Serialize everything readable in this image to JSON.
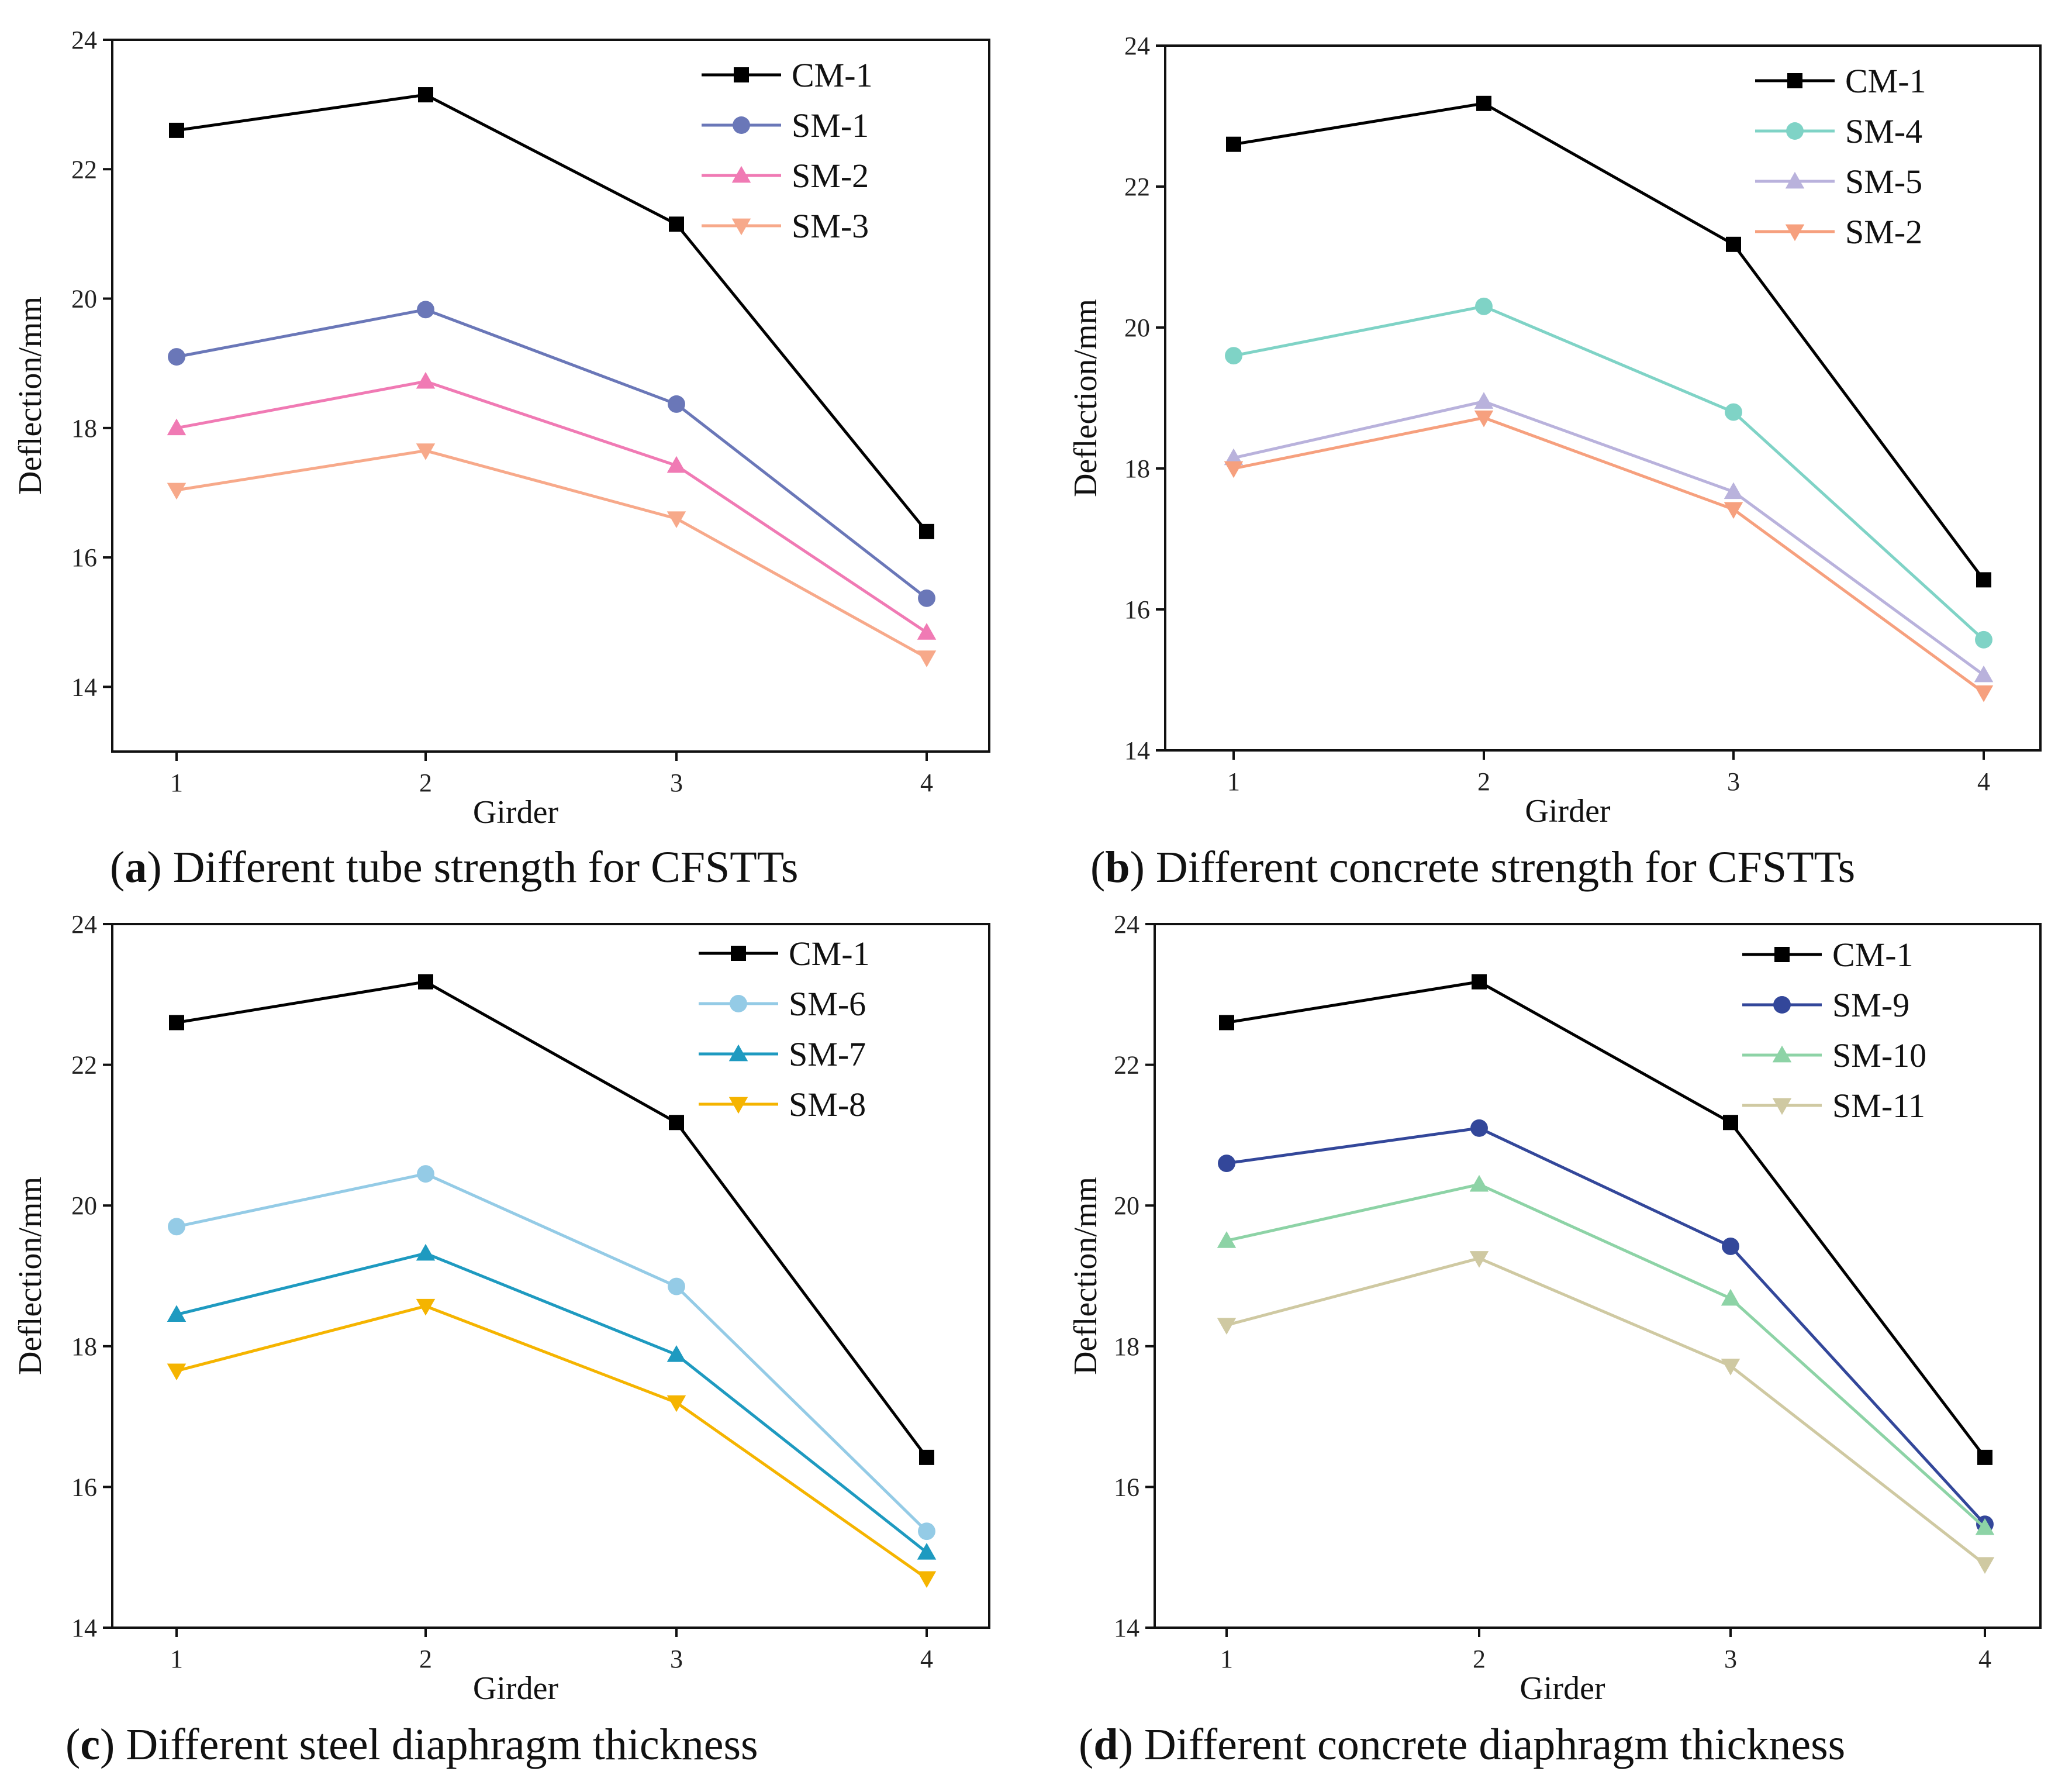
{
  "chart_data": [
    {
      "id": "a",
      "type": "line",
      "caption_letter": "a",
      "caption_text": "Different tube strength for CFSTTs",
      "xlabel": "Girder",
      "ylabel": "Deflection/mm",
      "categories": [
        "1",
        "2",
        "3",
        "4"
      ],
      "ylim": [
        13,
        24
      ],
      "yticks": [
        14,
        16,
        18,
        20,
        22,
        24
      ],
      "legend_position": "top-right",
      "series": [
        {
          "name": "CM-1",
          "color": "#000000",
          "marker": "square",
          "values": [
            22.6,
            23.15,
            21.15,
            16.4
          ]
        },
        {
          "name": "SM-1",
          "color": "#6a77b8",
          "marker": "circle",
          "values": [
            19.1,
            19.83,
            18.37,
            15.37
          ]
        },
        {
          "name": "SM-2",
          "color": "#f07ab4",
          "marker": "triangle-up",
          "values": [
            18.0,
            18.72,
            17.42,
            14.84
          ]
        },
        {
          "name": "SM-3",
          "color": "#f7a98a",
          "marker": "triangle-down",
          "values": [
            17.04,
            17.65,
            16.6,
            14.45
          ]
        }
      ]
    },
    {
      "id": "b",
      "type": "line",
      "caption_letter": "b",
      "caption_text": "Different concrete strength for CFSTTs",
      "xlabel": "Girder",
      "ylabel": "Deflection/mm",
      "categories": [
        "1",
        "2",
        "3",
        "4"
      ],
      "ylim": [
        14,
        24
      ],
      "yticks": [
        14,
        16,
        18,
        20,
        22,
        24
      ],
      "legend_position": "top-right",
      "series": [
        {
          "name": "CM-1",
          "color": "#000000",
          "marker": "square",
          "values": [
            22.6,
            23.18,
            21.18,
            16.42
          ]
        },
        {
          "name": "SM-4",
          "color": "#7fd3c6",
          "marker": "circle",
          "values": [
            19.6,
            20.3,
            18.8,
            15.57
          ]
        },
        {
          "name": "SM-5",
          "color": "#b9b2dc",
          "marker": "triangle-up",
          "values": [
            18.15,
            18.95,
            17.67,
            15.07
          ]
        },
        {
          "name": "SM-2",
          "color": "#f6a07e",
          "marker": "triangle-down",
          "values": [
            18.0,
            18.72,
            17.42,
            14.82
          ]
        }
      ]
    },
    {
      "id": "c",
      "type": "line",
      "caption_letter": "c",
      "caption_text": "Different steel diaphragm thickness",
      "xlabel": "Girder",
      "ylabel": "Deflection/mm",
      "categories": [
        "1",
        "2",
        "3",
        "4"
      ],
      "ylim": [
        14,
        24
      ],
      "yticks": [
        14,
        16,
        18,
        20,
        22,
        24
      ],
      "legend_position": "top-right",
      "series": [
        {
          "name": "CM-1",
          "color": "#000000",
          "marker": "square",
          "values": [
            22.6,
            23.18,
            21.18,
            16.42
          ]
        },
        {
          "name": "SM-6",
          "color": "#94cbe6",
          "marker": "circle",
          "values": [
            19.7,
            20.45,
            18.85,
            15.37
          ]
        },
        {
          "name": "SM-7",
          "color": "#1e9ac0",
          "marker": "triangle-up",
          "values": [
            18.45,
            19.32,
            17.88,
            15.07
          ]
        },
        {
          "name": "SM-8",
          "color": "#f5b400",
          "marker": "triangle-down",
          "values": [
            17.65,
            18.57,
            17.2,
            14.7
          ]
        }
      ]
    },
    {
      "id": "d",
      "type": "line",
      "caption_letter": "d",
      "caption_text": "Different concrete diaphragm thickness",
      "xlabel": "Girder",
      "ylabel": "Deflection/mm",
      "categories": [
        "1",
        "2",
        "3",
        "4"
      ],
      "ylim": [
        14,
        24
      ],
      "yticks": [
        14,
        16,
        18,
        20,
        22,
        24
      ],
      "legend_position": "top-right",
      "series": [
        {
          "name": "CM-1",
          "color": "#000000",
          "marker": "square",
          "values": [
            22.6,
            23.18,
            21.18,
            16.42
          ]
        },
        {
          "name": "SM-9",
          "color": "#33479a",
          "marker": "circle",
          "values": [
            20.6,
            21.1,
            19.42,
            15.47
          ]
        },
        {
          "name": "SM-10",
          "color": "#8dd3a6",
          "marker": "triangle-up",
          "values": [
            19.5,
            20.3,
            18.68,
            15.42
          ]
        },
        {
          "name": "SM-11",
          "color": "#cfc9a2",
          "marker": "triangle-down",
          "values": [
            18.3,
            19.25,
            17.72,
            14.9
          ]
        }
      ]
    }
  ]
}
